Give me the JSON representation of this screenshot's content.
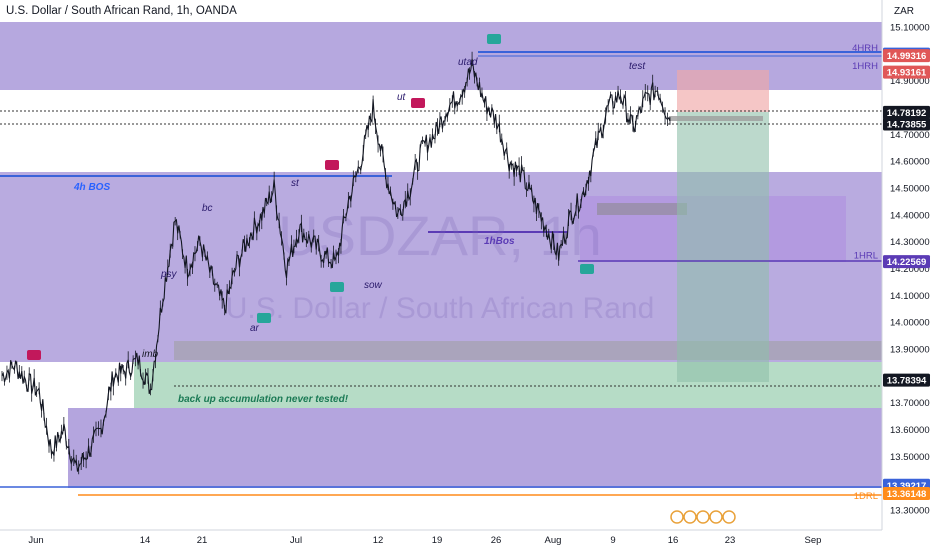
{
  "header": {
    "title": "U.S. Dollar / South African Rand, 1h, OANDA",
    "currency": "ZAR"
  },
  "watermark": {
    "symbol": "USDZAR, 1h",
    "name": "U.S. Dollar / South African Rand"
  },
  "colors": {
    "candle": "#131722",
    "zone_purple": "#a18fd6",
    "zone_green": "#8fc9a8",
    "zone_grey": "#b3b3b3",
    "line_blue": "#3a62d9",
    "line_purple": "#5b3bb5",
    "line_orange": "#ff8c1a",
    "label_purple": "#5b3bb5",
    "label_blue": "#2962ff",
    "badge_red": "#c2185b",
    "badge_green": "#26a69a",
    "price_red": "#e05757",
    "price_dark": "#131722",
    "price_blue": "#3a62d9",
    "price_purple": "#5b3bb5",
    "price_orange": "#ff8c1a"
  },
  "chart_data": {
    "type": "line",
    "series": [
      {
        "x": [
          "Jun 1",
          "Jun 2",
          "Jun 3",
          "Jun 4",
          "Jun 7",
          "Jun 8",
          "Jun 9",
          "Jun 10",
          "Jun 11",
          "Jun 14",
          "Jun 15",
          "Jun 16",
          "Jun 17",
          "Jun 18",
          "Jun 21",
          "Jun 22",
          "Jun 23",
          "Jun 24",
          "Jun 25",
          "Jun 28",
          "Jun 29",
          "Jun 30",
          "Jul 1",
          "Jul 2",
          "Jul 5",
          "Jul 6",
          "Jul 7",
          "Jul 8",
          "Jul 9",
          "Jul 12",
          "Jul 13",
          "Jul 14",
          "Jul 15",
          "Jul 16",
          "Jul 19",
          "Jul 20",
          "Jul 21",
          "Jul 22",
          "Jul 23",
          "Jul 26",
          "Jul 27",
          "Jul 28",
          "Jul 29",
          "Jul 30",
          "Aug 2",
          "Aug 3",
          "Aug 4",
          "Aug 5",
          "Aug 6",
          "Aug 9",
          "Aug 10",
          "Aug 11",
          "Aug 12",
          "Aug 13",
          "Aug 16"
        ],
        "values": [
          13.8,
          13.84,
          13.78,
          13.74,
          13.52,
          13.6,
          13.45,
          13.52,
          13.6,
          13.8,
          13.82,
          13.86,
          13.75,
          14.1,
          14.38,
          14.2,
          14.3,
          14.16,
          14.05,
          14.22,
          14.32,
          14.4,
          14.5,
          14.2,
          14.35,
          14.3,
          14.25,
          14.22,
          14.45,
          14.6,
          14.8,
          14.55,
          14.4,
          14.5,
          14.65,
          14.7,
          14.8,
          14.85,
          14.95,
          14.82,
          14.75,
          14.6,
          14.55,
          14.45,
          14.35,
          14.25,
          14.4,
          14.48,
          14.65,
          14.8,
          14.85,
          14.72,
          14.83,
          14.87,
          14.75
        ]
      }
    ],
    "x_axis_labels": [
      "Jun",
      "14",
      "21",
      "Jul",
      "12",
      "19",
      "26",
      "Aug",
      "9",
      "16",
      "23",
      "Sep"
    ],
    "y_axis_labels": [
      "15.10000",
      "15.00000",
      "14.90000",
      "14.70000",
      "14.60000",
      "14.50000",
      "14.40000",
      "14.30000",
      "14.20000",
      "14.10000",
      "14.00000",
      "13.90000",
      "13.70000",
      "13.60000",
      "13.50000",
      "13.40000",
      "13.30000"
    ],
    "ylim": [
      13.27,
      15.13
    ],
    "price_labels": [
      {
        "value": 14.99895,
        "text": "14.99895",
        "color": "price_blue"
      },
      {
        "value": 14.99316,
        "text": "14.99316",
        "color": "price_red"
      },
      {
        "value": 14.93161,
        "text": "14.93161",
        "color": "price_red"
      },
      {
        "value": 14.78192,
        "text": "14.78192",
        "color": "price_dark"
      },
      {
        "value": 14.73855,
        "text": "14.73855",
        "color": "price_dark"
      },
      {
        "value": 14.22569,
        "text": "14.22569",
        "color": "price_purple"
      },
      {
        "value": 13.78394,
        "text": "13.78394",
        "color": "price_dark"
      },
      {
        "value": 13.39217,
        "text": "13.39217",
        "color": "price_blue"
      },
      {
        "value": 13.36148,
        "text": "13.36148",
        "color": "price_orange"
      }
    ],
    "level_labels": [
      {
        "text": "4HRH",
        "value": 14.99895
      },
      {
        "text": "1HRH",
        "value": 14.93161
      },
      {
        "text": "1HRL",
        "value": 14.22569
      },
      {
        "text": "1DRL",
        "value": 13.33
      }
    ],
    "annotations": {
      "four_h_bos": "4h BOS",
      "one_h_bos": "1hBos",
      "utad": "utad",
      "ut": "ut",
      "st": "st",
      "bc": "bc",
      "psy": "psy",
      "ar": "ar",
      "sow": "sow",
      "imb": "imb",
      "test": "test",
      "backup": "back up accumulation never tested!"
    }
  }
}
